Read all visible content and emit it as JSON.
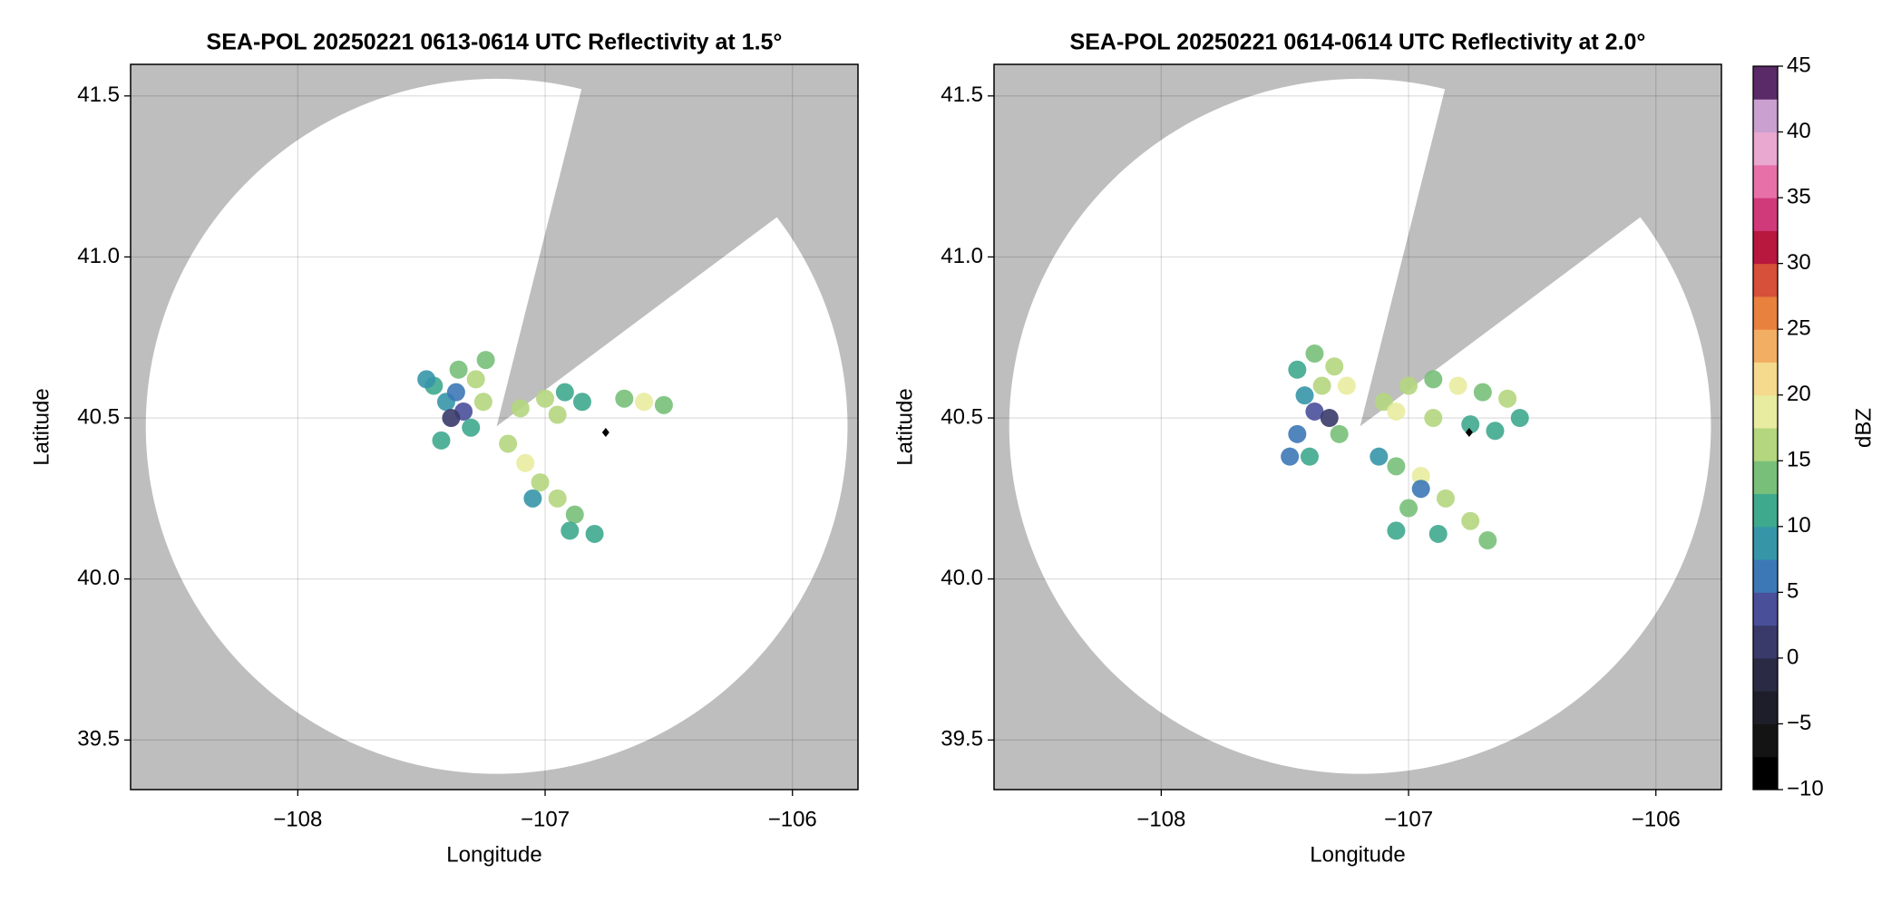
{
  "chart_data": [
    {
      "type": "radar",
      "title": "SEA-POL 20250221 0613-0614 UTC Reflectivity at 1.5°",
      "xlabel": "Longitude",
      "ylabel": "Latitude",
      "xlim": [
        -108.676,
        -105.735
      ],
      "ylim": [
        39.346,
        41.598
      ],
      "xticks": [
        {
          "value": -108,
          "label": "−108"
        },
        {
          "value": -107,
          "label": "−107"
        },
        {
          "value": -106,
          "label": "−106"
        }
      ],
      "yticks": [
        39.5,
        {
          "value": 40,
          "label": "40.0"
        },
        40.5,
        {
          "value": 41,
          "label": "41.0"
        },
        41.5
      ],
      "grid": true,
      "radar": {
        "lon": -107.196,
        "lat": 40.474,
        "range_km": 120,
        "blocked_azimuth": [
          14,
          53
        ]
      },
      "marker": {
        "lon": -106.755,
        "lat": 40.455
      },
      "x": [
        -107.45,
        -107.35,
        -107.28,
        -107.4,
        -107.33,
        -107.38,
        -107.25,
        -107.3,
        -107.42,
        -107.24,
        -107.48,
        -107.36,
        -107.1,
        -107.0,
        -106.92,
        -106.85,
        -106.95,
        -106.68,
        -106.6,
        -106.52,
        -107.15,
        -107.08,
        -107.02,
        -106.95,
        -106.88,
        -106.8,
        -107.05,
        -106.9
      ],
      "y": [
        40.6,
        40.65,
        40.62,
        40.55,
        40.52,
        40.5,
        40.55,
        40.47,
        40.43,
        40.68,
        40.62,
        40.58,
        40.53,
        40.56,
        40.58,
        40.55,
        40.51,
        40.56,
        40.55,
        40.54,
        40.42,
        40.36,
        40.3,
        40.25,
        40.2,
        40.14,
        40.25,
        40.15
      ],
      "values": [
        12,
        14,
        17,
        8,
        3,
        1,
        16,
        10,
        11,
        13,
        9,
        6,
        15,
        16,
        12,
        11,
        17,
        13,
        18,
        14,
        16,
        18,
        15,
        17,
        14,
        12,
        9,
        10
      ]
    },
    {
      "type": "radar",
      "title": "SEA-POL 20250221 0614-0614 UTC Reflectivity at 2.0°",
      "xlabel": "Longitude",
      "ylabel": "Latitude",
      "xlim": [
        -108.676,
        -105.735
      ],
      "ylim": [
        39.346,
        41.598
      ],
      "xticks": [
        {
          "value": -108,
          "label": "−108"
        },
        {
          "value": -107,
          "label": "−107"
        },
        {
          "value": -106,
          "label": "−106"
        }
      ],
      "yticks": [
        39.5,
        {
          "value": 40,
          "label": "40.0"
        },
        40.5,
        {
          "value": 41,
          "label": "41.0"
        },
        41.5
      ],
      "grid": true,
      "radar": {
        "lon": -107.196,
        "lat": 40.474,
        "range_km": 120,
        "blocked_azimuth": [
          14,
          53
        ]
      },
      "marker": {
        "lon": -106.755,
        "lat": 40.455
      },
      "x": [
        -107.45,
        -107.38,
        -107.3,
        -107.25,
        -107.42,
        -107.38,
        -107.32,
        -107.45,
        -107.28,
        -107.35,
        -107.48,
        -107.4,
        -107.1,
        -107.0,
        -106.9,
        -106.8,
        -106.7,
        -106.6,
        -106.55,
        -107.05,
        -106.9,
        -106.75,
        -106.65,
        -107.12,
        -107.05,
        -106.95,
        -106.85,
        -106.75,
        -106.68,
        -107.0,
        -107.05,
        -106.88,
        -106.95
      ],
      "y": [
        40.65,
        40.7,
        40.66,
        40.6,
        40.57,
        40.52,
        40.5,
        40.45,
        40.45,
        40.6,
        40.38,
        40.38,
        40.55,
        40.6,
        40.62,
        40.6,
        40.58,
        40.56,
        40.5,
        40.52,
        40.5,
        40.48,
        40.46,
        40.38,
        40.35,
        40.32,
        40.25,
        40.18,
        40.12,
        40.22,
        40.15,
        40.14,
        40.28
      ],
      "values": [
        12,
        14,
        17,
        18,
        9,
        3,
        1,
        7,
        13,
        15,
        6,
        10,
        17,
        16,
        14,
        18,
        13,
        15,
        12,
        18,
        16,
        11,
        10,
        9,
        14,
        18,
        17,
        15,
        14,
        13,
        10,
        12,
        7
      ],
      "colorbar": {
        "label": "dBZ",
        "clim": [
          -10,
          45
        ],
        "ticks": [
          {
            "value": -10,
            "label": "−10"
          },
          {
            "value": -5,
            "label": "−5"
          },
          0,
          5,
          10,
          15,
          20,
          25,
          30,
          35,
          40,
          45
        ],
        "colormap": [
          "#000000",
          "#141414",
          "#1e1e2a",
          "#2a2a45",
          "#3a3a6a",
          "#4a4f9a",
          "#3d78b6",
          "#3696a8",
          "#3fa98e",
          "#78c07a",
          "#b4d67e",
          "#e8eca0",
          "#f5d98c",
          "#f2ae62",
          "#e8803e",
          "#d6503a",
          "#b8183e",
          "#d03a7a",
          "#e870a8",
          "#e8a8d0",
          "#c9a0d0",
          "#5a2a68"
        ]
      }
    }
  ]
}
